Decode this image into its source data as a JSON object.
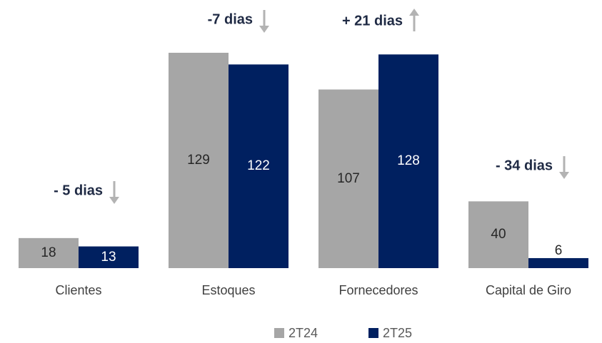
{
  "chart_data": {
    "type": "bar",
    "categories": [
      "Clientes",
      "Estoques",
      "Fornecedores",
      "Capital de Giro"
    ],
    "series": [
      {
        "name": "2T24",
        "color": "#a6a6a6",
        "values": [
          18,
          129,
          107,
          40
        ]
      },
      {
        "name": "2T25",
        "color": "#002060",
        "values": [
          13,
          122,
          128,
          6
        ]
      }
    ],
    "annotations": [
      {
        "text": "- 5 dias",
        "direction": "down"
      },
      {
        "text": "-7 dias",
        "direction": "down"
      },
      {
        "text": "+ 21 dias",
        "direction": "up"
      },
      {
        "text": "- 34 dias",
        "direction": "down"
      }
    ],
    "legend": "bottom"
  }
}
